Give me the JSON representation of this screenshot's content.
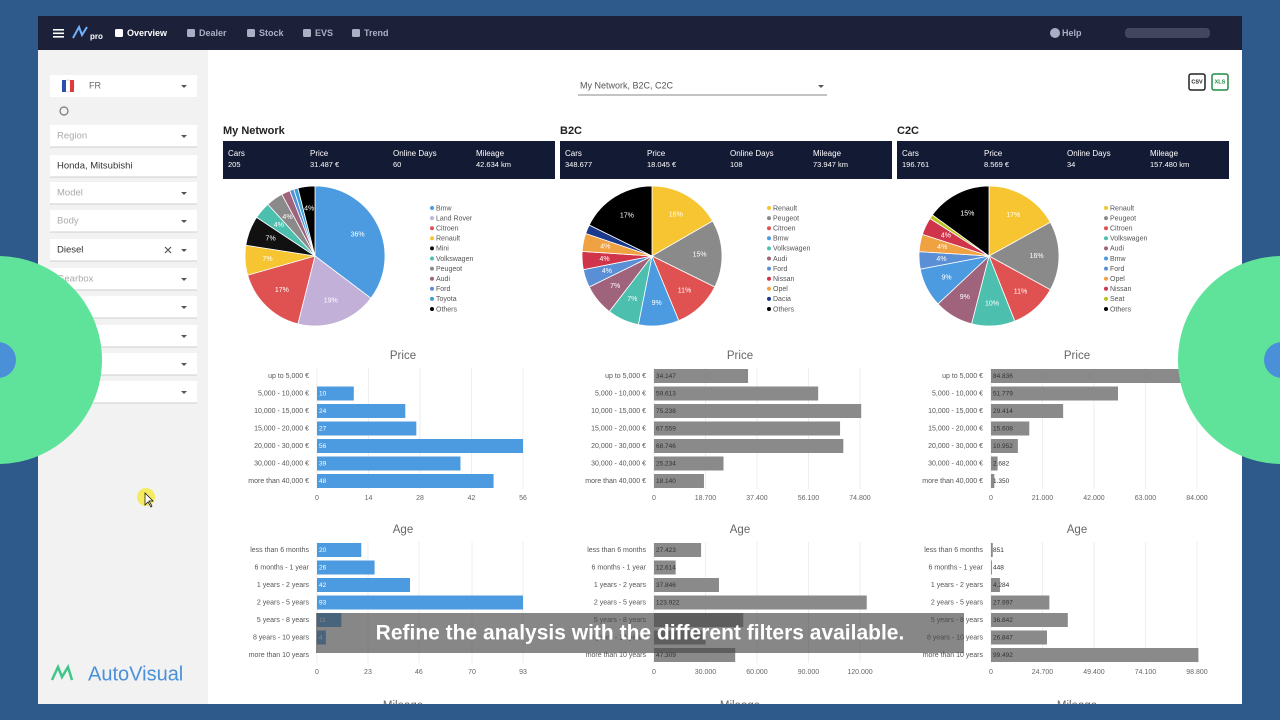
{
  "nav": {
    "logo": "pro",
    "items": [
      "Overview",
      "Dealer",
      "Stock",
      "EVS",
      "Trend"
    ],
    "help": "Help"
  },
  "sidebar": {
    "country": "FR",
    "filters": [
      "Region",
      "Honda, Mitsubishi",
      "Model",
      "Body",
      "Diesel",
      "Gearbox"
    ],
    "brand": "AutoVisual"
  },
  "selector": "My Network, B2C, C2C",
  "export": [
    "CSV",
    "XLS"
  ],
  "panels": [
    {
      "title": "My Network",
      "stats": [
        {
          "label": "Cars",
          "value": "205"
        },
        {
          "label": "Price",
          "value": "31.487 €"
        },
        {
          "label": "Online Days",
          "value": "60"
        },
        {
          "label": "Mileage",
          "value": "42.634 km"
        }
      ],
      "pie": {
        "type": "pie",
        "categories": [
          "Bmw",
          "Land Rover",
          "Citroen",
          "Renault",
          "Mini",
          "Volkswagen",
          "Peugeot",
          "Audi",
          "Ford",
          "Toyota",
          "Others"
        ],
        "colors": [
          "#4c9be0",
          "#c2b0d9",
          "#e05252",
          "#f6c531",
          "#111111",
          "#4cbfae",
          "#8a8a8a",
          "#a0637c",
          "#5a8fd6",
          "#3aa0d4",
          "#000000"
        ],
        "values": [
          36,
          19,
          17,
          7,
          7,
          4,
          4,
          2,
          1,
          1,
          4
        ],
        "value_labels": [
          "36%",
          "19%",
          "17%",
          "7%",
          "7%",
          "4%",
          "4%",
          null,
          null,
          null,
          "4%"
        ]
      },
      "price": {
        "type": "bar",
        "title": "Price",
        "color": "#4c9be0",
        "categories": [
          "up to 5,000 €",
          "5,000 - 10,000 €",
          "10,000 - 15,000 €",
          "15,000 - 20,000 €",
          "20,000 - 30,000 €",
          "30,000 - 40,000 €",
          "more than 40,000 €"
        ],
        "values": [
          0,
          10,
          24,
          27,
          56,
          39,
          48
        ],
        "xlim": [
          0,
          56
        ],
        "xticks": [
          0,
          14,
          28,
          42,
          56
        ]
      },
      "age": {
        "type": "bar",
        "title": "Age",
        "color": "#4c9be0",
        "categories": [
          "less than 6 months",
          "6 months - 1 year",
          "1 years - 2 years",
          "2 years - 5 years",
          "5 years - 8 years",
          "8 years - 10 years",
          "more than 10 years"
        ],
        "values": [
          20,
          26,
          42,
          93,
          11,
          4,
          0
        ],
        "xlim": [
          0,
          93
        ],
        "xticks": [
          0,
          23,
          46,
          70,
          93
        ]
      },
      "next_title": "Mileage"
    },
    {
      "title": "B2C",
      "stats": [
        {
          "label": "Cars",
          "value": "348.677"
        },
        {
          "label": "Price",
          "value": "18.045 €"
        },
        {
          "label": "Online Days",
          "value": "108"
        },
        {
          "label": "Mileage",
          "value": "73.947 km"
        }
      ],
      "pie": {
        "type": "pie",
        "categories": [
          "Renault",
          "Peugeot",
          "Citroen",
          "Bmw",
          "Volkswagen",
          "Audi",
          "Ford",
          "Nissan",
          "Opel",
          "Dacia",
          "Others"
        ],
        "colors": [
          "#f6c531",
          "#8a8a8a",
          "#e05252",
          "#4c9be0",
          "#4cbfae",
          "#a0637c",
          "#5a8fd6",
          "#d0344a",
          "#f0a142",
          "#1c3a8c",
          "#000000"
        ],
        "values": [
          16,
          15,
          11,
          9,
          7,
          7,
          4,
          4,
          4,
          2,
          17
        ],
        "value_labels": [
          "16%",
          "15%",
          "11%",
          "9%",
          "7%",
          "7%",
          "4%",
          "4%",
          "4%",
          null,
          "17%"
        ]
      },
      "price": {
        "type": "bar",
        "title": "Price",
        "color": "#8a8a8a",
        "categories": [
          "up to 5,000 €",
          "5,000 - 10,000 €",
          "10,000 - 15,000 €",
          "15,000 - 20,000 €",
          "20,000 - 30,000 €",
          "30,000 - 40,000 €",
          "more than 40,000 €"
        ],
        "values": [
          34147,
          59613,
          75238,
          67559,
          68746,
          25234,
          18140
        ],
        "value_labels": [
          "34.147",
          "59.613",
          "75.238",
          "67.559",
          "68.746",
          "25.234",
          "18.140"
        ],
        "xlim": [
          0,
          74800
        ],
        "xticks": [
          0,
          {
            "value": 18700,
            "label": "18.700"
          },
          {
            "value": 37400,
            "label": "37.400"
          },
          {
            "value": 56100,
            "label": "56.100"
          },
          {
            "value": 74800,
            "label": "74.800"
          }
        ]
      },
      "age": {
        "type": "bar",
        "title": "Age",
        "color": "#8a8a8a",
        "categories": [
          "less than 6 months",
          "6 months - 1 year",
          "1 years - 2 years",
          "2 years - 5 years",
          "5 years - 8 years",
          "8 years - 10 years",
          "more than 10 years"
        ],
        "values": [
          27423,
          12614,
          37846,
          123922,
          52000,
          30000,
          47309
        ],
        "value_labels": [
          "27.423",
          "12.614",
          "37.846",
          "123.922",
          null,
          null,
          "47.309"
        ],
        "xlim": [
          0,
          120000
        ],
        "xticks": [
          0,
          {
            "value": 30000,
            "label": "30.000"
          },
          {
            "value": 60000,
            "label": "60.000"
          },
          {
            "value": 90000,
            "label": "90.000"
          },
          {
            "value": 120000,
            "label": "120.000"
          }
        ]
      },
      "next_title": "Mileage"
    },
    {
      "title": "C2C",
      "stats": [
        {
          "label": "Cars",
          "value": "196.761"
        },
        {
          "label": "Price",
          "value": "8.569 €"
        },
        {
          "label": "Online Days",
          "value": "34"
        },
        {
          "label": "Mileage",
          "value": "157.480 km"
        }
      ],
      "pie": {
        "type": "pie",
        "categories": [
          "Renault",
          "Peugeot",
          "Citroen",
          "Volkswagen",
          "Audi",
          "Bmw",
          "Ford",
          "Opel",
          "Nissan",
          "Seat",
          "Others"
        ],
        "colors": [
          "#f6c531",
          "#8a8a8a",
          "#e05252",
          "#4cbfae",
          "#a0637c",
          "#4c9be0",
          "#5a8fd6",
          "#f0a142",
          "#d0344a",
          "#b9c21f",
          "#000000"
        ],
        "values": [
          17,
          16,
          11,
          10,
          9,
          9,
          4,
          4,
          4,
          1,
          15
        ],
        "value_labels": [
          "17%",
          "16%",
          "11%",
          "10%",
          "9%",
          "9%",
          "4%",
          "4%",
          "4%",
          null,
          "15%"
        ]
      },
      "price": {
        "type": "bar",
        "title": "Price",
        "color": "#8a8a8a",
        "categories": [
          "up to 5,000 €",
          "5,000 - 10,000 €",
          "10,000 - 15,000 €",
          "15,000 - 20,000 €",
          "20,000 - 30,000 €",
          "30,000 - 40,000 €",
          "more than 40,000 €"
        ],
        "values": [
          84836,
          51779,
          29414,
          15608,
          10952,
          2682,
          1350
        ],
        "value_labels": [
          "84.836",
          "51.779",
          "29.414",
          "15.608",
          "10.952",
          "2.682",
          "1.350"
        ],
        "xlim": [
          0,
          84000
        ],
        "xticks": [
          0,
          {
            "value": 21000,
            "label": "21.000"
          },
          {
            "value": 42000,
            "label": "42.000"
          },
          {
            "value": 63000,
            "label": "63.000"
          },
          {
            "value": 84000,
            "label": "84.000"
          }
        ]
      },
      "age": {
        "type": "bar",
        "title": "Age",
        "color": "#8a8a8a",
        "categories": [
          "less than 6 months",
          "6 months - 1 year",
          "1 years - 2 years",
          "2 years - 5 years",
          "5 years - 8 years",
          "8 years - 10 years",
          "more than 10 years"
        ],
        "values": [
          851,
          448,
          4284,
          27997,
          36842,
          26847,
          99492
        ],
        "value_labels": [
          "851",
          "448",
          "4.284",
          "27.997",
          "36.842",
          "26.847",
          "99.492"
        ],
        "xlim": [
          0,
          98800
        ],
        "xticks": [
          0,
          {
            "value": 24700,
            "label": "24.700"
          },
          {
            "value": 49400,
            "label": "49.400"
          },
          {
            "value": 74100,
            "label": "74.100"
          },
          {
            "value": 98800,
            "label": "98.800"
          }
        ]
      },
      "next_title": "Mileage"
    }
  ],
  "caption": "Refine the analysis with the different filters available."
}
